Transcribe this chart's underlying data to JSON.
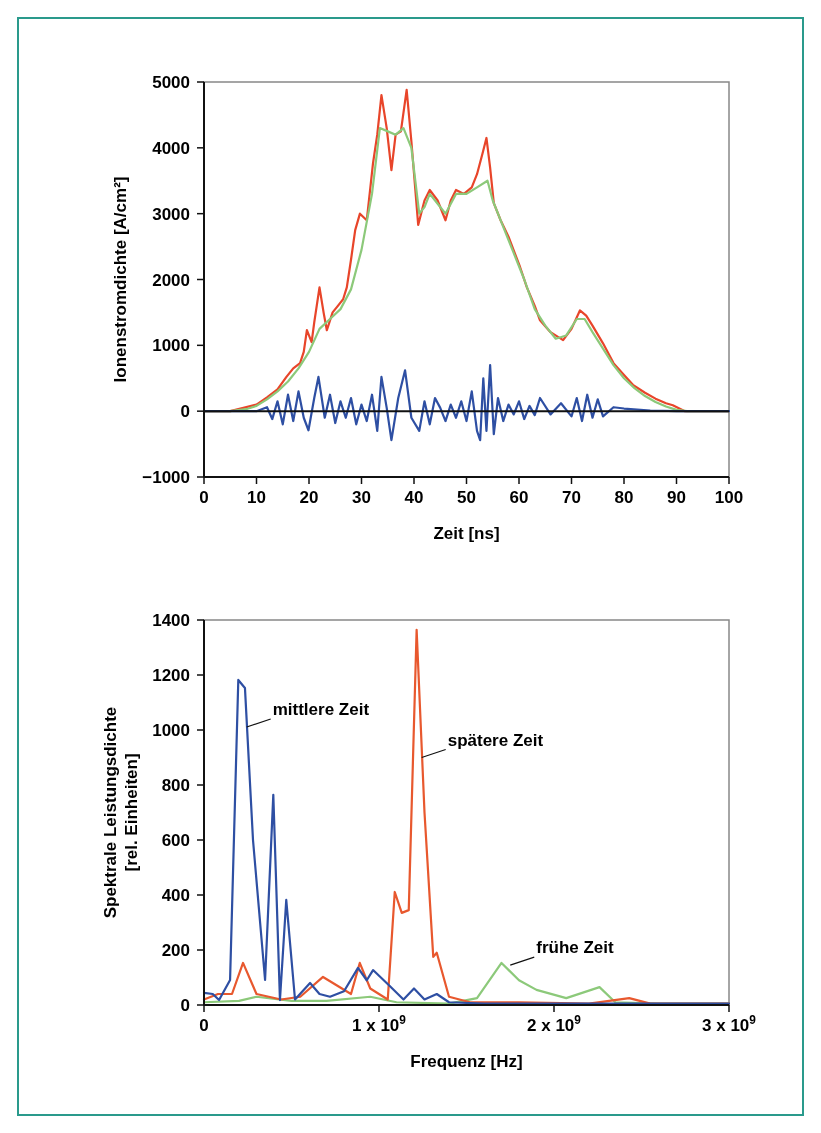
{
  "chart_data": [
    {
      "type": "line",
      "ylabel": "Ionenstromdichte [A/cm²]",
      "xlabel": "Zeit [ns]",
      "xlim": [
        0,
        100
      ],
      "xticks": [
        0,
        10,
        20,
        30,
        40,
        50,
        60,
        70,
        80,
        90,
        100
      ],
      "ylim": [
        -1000,
        5000
      ],
      "yticks": [
        {
          "value": -1000,
          "label": "−1000"
        },
        0,
        1000,
        2000,
        3000,
        4000,
        5000
      ],
      "grid": false,
      "marker": "none",
      "line_style": "solid",
      "ref_lines": [
        {
          "axis": "y",
          "value": 0,
          "color": "#111111"
        }
      ],
      "series": [
        {
          "color": "#e8452a",
          "x": [
            0,
            5,
            7.5,
            10,
            12,
            14,
            15.7,
            17,
            18.3,
            19,
            19.6,
            20.5,
            21,
            22,
            22.8,
            23.4,
            24.5,
            25.5,
            26.5,
            27.2,
            28,
            28.8,
            29.7,
            31,
            32.2,
            33,
            33.8,
            34.8,
            35.7,
            36.5,
            37.5,
            38.6,
            39.5,
            40.8,
            42,
            43,
            44.5,
            46,
            47,
            48,
            49.5,
            51,
            52,
            53,
            53.8,
            54.5,
            55.2,
            56.5,
            58,
            60.2,
            61.5,
            63,
            64,
            66,
            68.4,
            70,
            71.6,
            72.8,
            74,
            76,
            78,
            80,
            81.7,
            84,
            86,
            88,
            89.3,
            91.6,
            95,
            100
          ],
          "values": [
            0,
            0,
            50,
            100,
            210,
            330,
            520,
            650,
            730,
            900,
            1230,
            1050,
            1350,
            1880,
            1490,
            1230,
            1500,
            1600,
            1700,
            1880,
            2300,
            2750,
            3000,
            2900,
            3770,
            4200,
            4800,
            4300,
            3660,
            4200,
            4250,
            4880,
            4100,
            2830,
            3200,
            3360,
            3200,
            2900,
            3200,
            3360,
            3300,
            3400,
            3600,
            3900,
            4150,
            3700,
            3160,
            2900,
            2650,
            2190,
            1880,
            1600,
            1380,
            1200,
            1080,
            1250,
            1530,
            1450,
            1300,
            1030,
            730,
            550,
            400,
            280,
            190,
            120,
            90,
            0,
            0,
            0
          ]
        },
        {
          "color": "#8cc97a",
          "x": [
            0,
            5,
            8,
            10,
            12,
            14,
            16,
            18,
            20,
            22,
            24,
            26,
            28,
            30,
            32,
            33.5,
            35,
            36.5,
            38,
            39.5,
            41,
            42,
            43,
            44.5,
            46,
            48,
            50,
            52,
            54,
            55,
            57,
            59,
            61,
            63,
            65,
            67,
            69,
            71,
            72.5,
            74,
            76,
            78,
            80,
            82,
            84,
            86,
            88,
            90,
            92,
            95,
            100
          ],
          "values": [
            0,
            0,
            30,
            80,
            180,
            300,
            450,
            650,
            900,
            1250,
            1400,
            1550,
            1850,
            2450,
            3300,
            4300,
            4250,
            4200,
            4300,
            4000,
            3000,
            3100,
            3300,
            3150,
            3000,
            3300,
            3300,
            3400,
            3500,
            3200,
            2800,
            2400,
            2000,
            1550,
            1300,
            1100,
            1150,
            1400,
            1400,
            1200,
            950,
            700,
            500,
            350,
            230,
            140,
            70,
            20,
            0,
            0,
            0
          ]
        },
        {
          "color": "#2e4fa3",
          "x": [
            0,
            10,
            12,
            13,
            14,
            15,
            16,
            17,
            18,
            19,
            19.9,
            21,
            21.8,
            23,
            24,
            25,
            26,
            27,
            28,
            29,
            30,
            31,
            32,
            33,
            33.8,
            34.8,
            35.7,
            37,
            38.3,
            39.5,
            41,
            42,
            43,
            44,
            45,
            46,
            47,
            48,
            49,
            50,
            51,
            52,
            52.6,
            53.2,
            53.8,
            54.5,
            55.2,
            56,
            57,
            58,
            59,
            60,
            61,
            62,
            63,
            64,
            66,
            68,
            70,
            71,
            72,
            73,
            74,
            75,
            76,
            78,
            80,
            85,
            90,
            100
          ],
          "values": [
            0,
            0,
            60,
            -120,
            150,
            -200,
            250,
            -150,
            300,
            -100,
            -290,
            200,
            520,
            -100,
            250,
            -180,
            150,
            -100,
            200,
            -200,
            100,
            -150,
            250,
            -300,
            520,
            50,
            -440,
            200,
            620,
            -100,
            -300,
            150,
            -200,
            200,
            50,
            -150,
            100,
            -100,
            150,
            -150,
            300,
            -300,
            -440,
            500,
            -300,
            700,
            -350,
            200,
            -150,
            100,
            -50,
            150,
            -120,
            80,
            -60,
            200,
            -50,
            120,
            -80,
            200,
            -150,
            250,
            -100,
            180,
            -80,
            60,
            40,
            10,
            0,
            0
          ]
        }
      ]
    },
    {
      "type": "line",
      "ylabel": "Spektrale Leistungsdichte\n[rel. Einheiten]",
      "xlabel": "Frequenz [Hz]",
      "xlim": [
        0,
        3000000000
      ],
      "xticks": [
        0,
        {
          "value": 1000000000,
          "label": "1 x 10$^{9}$"
        },
        {
          "value": 2000000000,
          "label": "2 x 10$^{9}$"
        },
        {
          "value": 3000000000,
          "label": "3 x 10$^{9}$"
        }
      ],
      "ylim": [
        0,
        1400
      ],
      "yticks": [
        0,
        200,
        400,
        600,
        800,
        1000,
        1200,
        1400
      ],
      "grid": false,
      "marker": "none",
      "line_style": "solid",
      "annotations": [
        {
          "text": "mittlere Zeit",
          "x": 244000000,
          "y": 1011
        },
        {
          "text": "spätere Zeit",
          "x": 1244000000,
          "y": 900
        },
        {
          "text": "frühe Zeit",
          "x": 1750000000,
          "y": 145
        }
      ],
      "series": [
        {
          "color": "#8cc97a",
          "x": [
            0,
            200000000.0,
            300000000.0,
            500000000.0,
            700000000.0,
            950000000.0,
            1100000000.0,
            1400000000.0,
            1560000000.0,
            1700000000.0,
            1800000000.0,
            1900000000.0,
            2070000000.0,
            2260000000.0,
            2350000000.0,
            2600000000.0,
            3000000000.0
          ],
          "values": [
            10,
            15,
            30,
            15,
            15,
            30,
            10,
            5,
            25,
            153,
            90,
            55,
            25,
            65,
            10,
            5,
            5
          ]
        },
        {
          "color": "#e8582e",
          "x": [
            0,
            80000000.0,
            160000000.0,
            223000000.0,
            300000000.0,
            440000000.0,
            550000000.0,
            680000000.0,
            840000000.0,
            890000000.0,
            950000000.0,
            1050000000.0,
            1090000000.0,
            1130000000.0,
            1170000000.0,
            1215000000.0,
            1260000000.0,
            1310000000.0,
            1330000000.0,
            1400000000.0,
            1520000000.0,
            1800000000.0,
            2200000000.0,
            2430000000.0,
            2550000000.0,
            3000000000.0
          ],
          "values": [
            20,
            40,
            40,
            153,
            40,
            20,
            30,
            102,
            40,
            153,
            60,
            20,
            411,
            335,
            345,
            1364,
            700,
            175,
            190,
            30,
            10,
            10,
            5,
            25,
            5,
            5
          ]
        },
        {
          "color": "#2e4fa3",
          "x": [
            0,
            50000000.0,
            86000000.0,
            149000000.0,
            196000000.0,
            234000000.0,
            280000000.0,
            349000000.0,
            396000000.0,
            434000000.0,
            470000000.0,
            520000000.0,
            606000000.0,
            660000000.0,
            720000000.0,
            800000000.0,
            880000000.0,
            930000000.0,
            966000000.0,
            1060000000.0,
            1140000000.0,
            1200000000.0,
            1260000000.0,
            1330000000.0,
            1400000000.0,
            1600000000.0,
            2000000000.0,
            2500000000.0,
            3000000000.0
          ],
          "values": [
            44,
            40,
            18,
            91,
            1182,
            1153,
            600,
            91,
            764,
            18,
            382,
            20,
            80,
            40,
            30,
            50,
            135,
            90,
            127,
            70,
            20,
            60,
            20,
            40,
            10,
            5,
            5,
            5,
            5
          ]
        }
      ]
    }
  ]
}
